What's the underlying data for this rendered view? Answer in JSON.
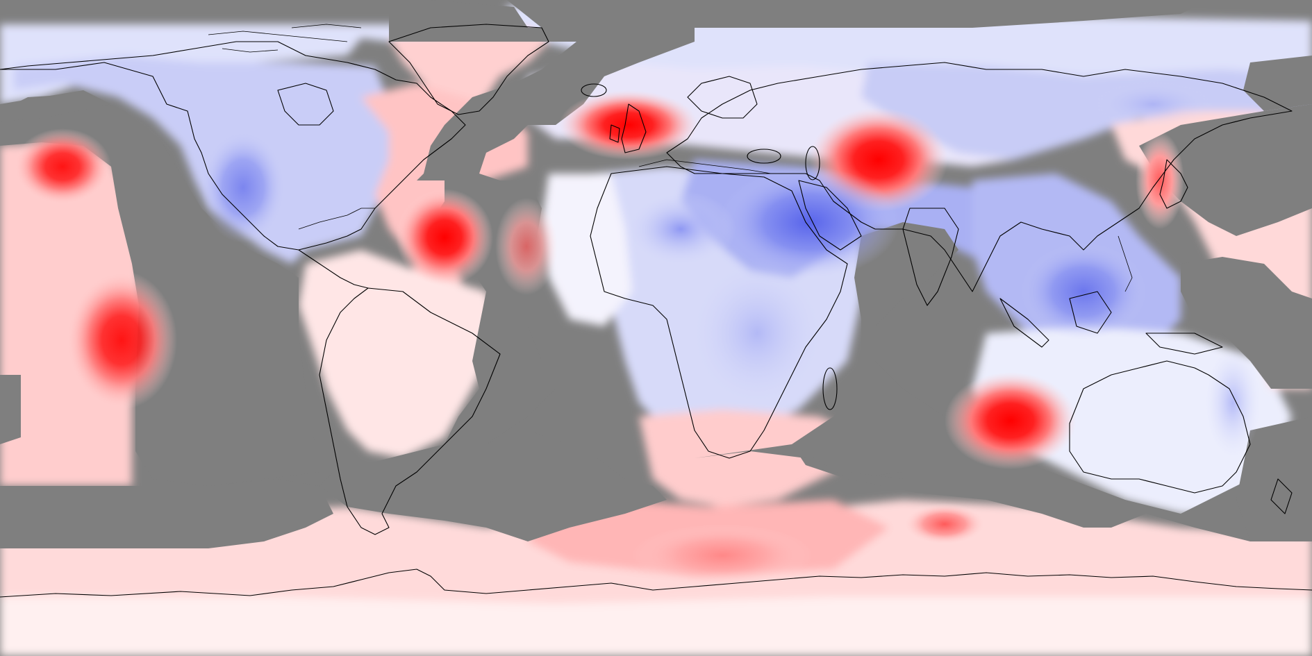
{
  "map": {
    "projection": "equirectangular",
    "extent": {
      "lon": [
        -180,
        180
      ],
      "lat": [
        -90,
        90
      ]
    },
    "colormap": {
      "negative": "#3344ee",
      "neutral": "#ffffff",
      "positive": "#ff0000",
      "no_data": "#7f7f7f"
    },
    "coastlines": true,
    "features": [
      {
        "id": "central-asia-hotspot",
        "sign": "positive",
        "intensity": 1.0
      },
      {
        "id": "british-isles-hotspot",
        "sign": "positive",
        "intensity": 1.0
      },
      {
        "id": "us-east-coast-hotspot",
        "sign": "positive",
        "intensity": 1.0
      },
      {
        "id": "west-australia-hotspot",
        "sign": "positive",
        "intensity": 1.0
      },
      {
        "id": "east-pacific-hotspot",
        "sign": "positive",
        "intensity": 0.9
      },
      {
        "id": "north-pacific-hotspot",
        "sign": "positive",
        "intensity": 0.9
      },
      {
        "id": "west-africa-coast-hotspot",
        "sign": "positive",
        "intensity": 0.7
      },
      {
        "id": "southern-ocean-warm-band",
        "sign": "positive",
        "intensity": 0.5
      },
      {
        "id": "middle-east-cold-region",
        "sign": "negative",
        "intensity": 0.75
      },
      {
        "id": "north-america-cold-region",
        "sign": "negative",
        "intensity": 0.55
      },
      {
        "id": "siberia-cold-region",
        "sign": "negative",
        "intensity": 0.45
      },
      {
        "id": "southeast-asia-cold-region",
        "sign": "negative",
        "intensity": 0.6
      },
      {
        "id": "africa-cold-region",
        "sign": "negative",
        "intensity": 0.5
      },
      {
        "id": "east-australia-cold-spots",
        "sign": "negative",
        "intensity": 0.6
      }
    ]
  }
}
